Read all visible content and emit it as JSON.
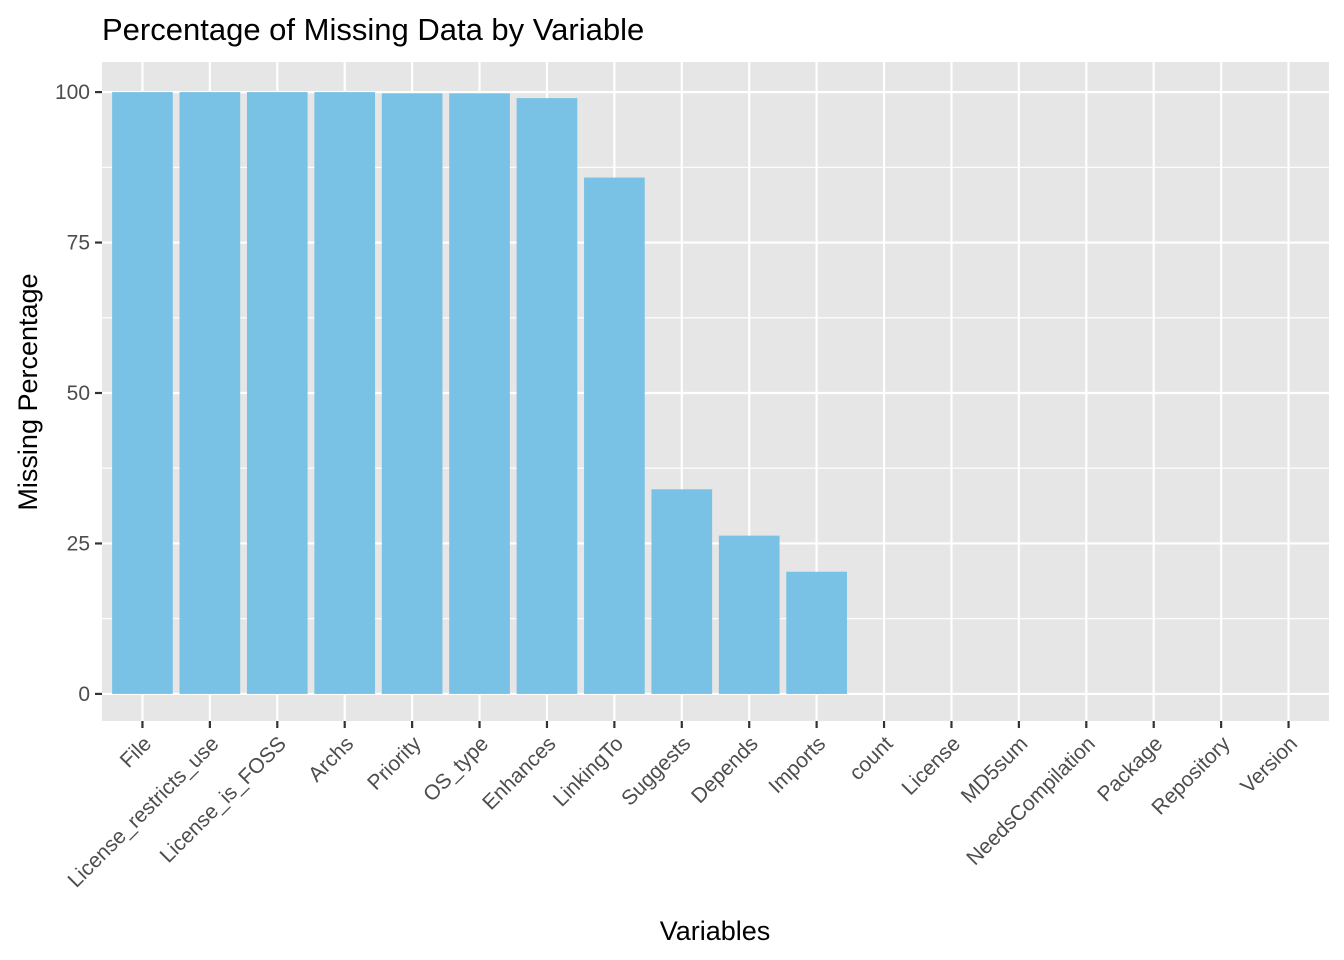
{
  "chart_data": {
    "type": "bar",
    "title": "Percentage of Missing Data by Variable",
    "xlabel": "Variables",
    "ylabel": "Missing Percentage",
    "categories": [
      "File",
      "License_restricts_use",
      "License_is_FOSS",
      "Archs",
      "Priority",
      "OS_type",
      "Enhances",
      "LinkingTo",
      "Suggests",
      "Depends",
      "Imports",
      "count",
      "License",
      "MD5sum",
      "NeedsCompilation",
      "Package",
      "Repository",
      "Version"
    ],
    "values": [
      100,
      100,
      100,
      100,
      99.8,
      99.8,
      99,
      85.8,
      34,
      26.3,
      20.3,
      0,
      0,
      0,
      0,
      0,
      0,
      0
    ],
    "yticks": [
      0,
      25,
      50,
      75,
      100
    ],
    "ylim": [
      -4.5,
      105
    ],
    "grid": true,
    "colors": {
      "bar": "#79c2e5",
      "panel": "#e6e6e6",
      "grid": "#ffffff"
    }
  }
}
